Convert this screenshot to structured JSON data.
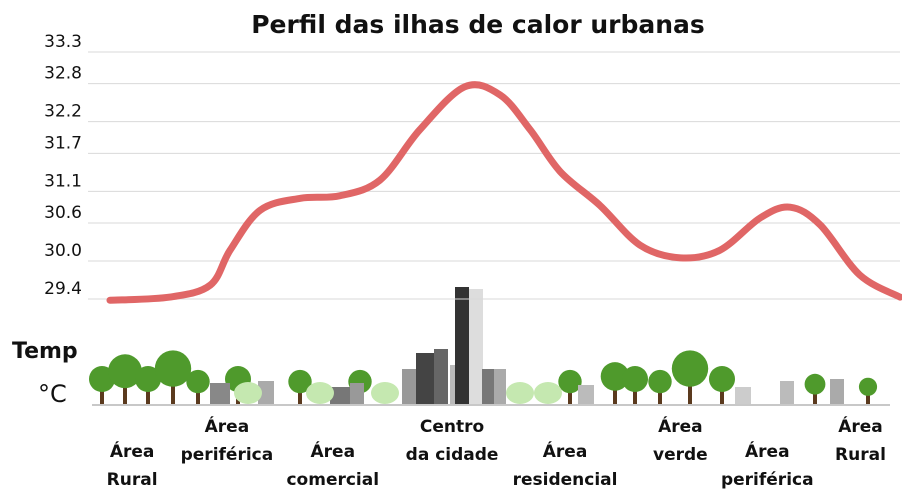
{
  "chart_data": {
    "type": "line",
    "title": "Perfil das ilhas de calor urbanas",
    "y_label": [
      "Temp",
      "°C"
    ],
    "xlim": [
      0,
      100
    ],
    "x": [
      0,
      7.6,
      12.7,
      15.2,
      19,
      24.1,
      29.1,
      34.2,
      39.2,
      44.9,
      49.4,
      53.2,
      57,
      62,
      67.1,
      72.2,
      77.2,
      82.3,
      86.1,
      89.9,
      94.9,
      100
    ],
    "series": [
      {
        "color": "#e06666",
        "values": [
          29.38,
          29.43,
          29.62,
          30.17,
          30.8,
          30.99,
          31.03,
          31.28,
          32.07,
          32.75,
          32.62,
          32.07,
          31.41,
          30.88,
          30.25,
          30.05,
          30.17,
          30.68,
          30.85,
          30.57,
          29.78,
          29.43
        ]
      }
    ],
    "ylim": [
      29.4,
      33.3
    ],
    "yticks": [
      {
        "value": 29.4,
        "label": "29.4"
      },
      {
        "value": 30,
        "label": "30.0"
      },
      30.6,
      31.1,
      31.7,
      32.2,
      32.8,
      33.3
    ],
    "grid": true,
    "areas": [
      {
        "x": 2.8,
        "lines": [
          "Área",
          "Rural"
        ]
      },
      {
        "x": 14.8,
        "lines": [
          "Área",
          "periférica"
        ]
      },
      {
        "x": 28.2,
        "lines": [
          "Área",
          "comercial"
        ]
      },
      {
        "x": 43.3,
        "lines": [
          "Centro",
          "da cidade"
        ]
      },
      {
        "x": 57.6,
        "lines": [
          "Área",
          "residencial"
        ]
      },
      {
        "x": 72.2,
        "lines": [
          "Área",
          "verde"
        ]
      },
      {
        "x": 83.2,
        "lines": [
          "Área",
          "periférica"
        ]
      },
      {
        "x": 95,
        "lines": [
          "Área",
          "Rural"
        ]
      }
    ]
  }
}
